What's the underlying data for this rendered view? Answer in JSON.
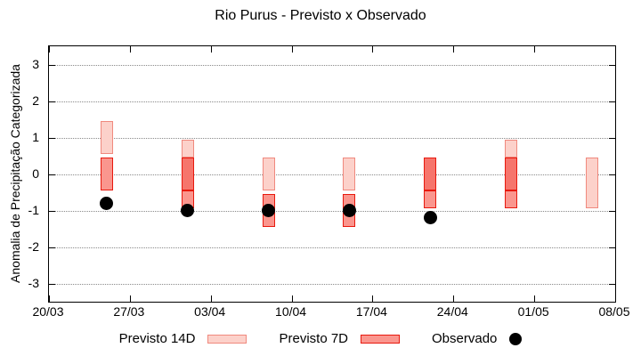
{
  "chart_data": {
    "type": "bar",
    "subtype": "interval-boxes-with-observed-dots",
    "title": "Rio Purus - Previsto x Observado",
    "ylabel": "Anomalia de Precipitação Categorizada",
    "xlabel": "",
    "x_axis": {
      "range_days": 49,
      "tick_days": [
        0,
        7,
        14,
        21,
        28,
        35,
        42,
        49
      ],
      "tick_labels": [
        "20/03",
        "27/03",
        "03/04",
        "10/04",
        "17/04",
        "24/04",
        "01/05",
        "08/05"
      ]
    },
    "y_axis": {
      "min": -3.5,
      "max": 3.5,
      "ticks": [
        3,
        2,
        1,
        0,
        -1,
        -2,
        -3
      ],
      "grid": "dotted horizontal"
    },
    "legend_entries": [
      {
        "label": "Previsto 14D",
        "marker": "box",
        "shade": "light"
      },
      {
        "label": "Previsto 7D",
        "marker": "box",
        "shade": "medium"
      },
      {
        "label": "Observado",
        "marker": "dot"
      }
    ],
    "colors": {
      "fill_light": "#fcd1ca",
      "fill_medium": "#fa968e",
      "fill_dark": "#f6756c",
      "border_light": "#f0897e",
      "border_strong": "#e8190e",
      "observed": "#000000",
      "grid": "#8a8a8a"
    },
    "bars": [
      {
        "date": "25/03",
        "day": 5,
        "segments": [
          {
            "from": 0.55,
            "to": 1.45,
            "shade": "light"
          },
          {
            "from": -0.45,
            "to": 0.45,
            "shade": "medium"
          }
        ],
        "observed": -0.8
      },
      {
        "date": "01/04",
        "day": 12,
        "segments": [
          {
            "from": 0.45,
            "to": 0.95,
            "shade": "light"
          },
          {
            "from": -0.45,
            "to": 0.45,
            "shade": "dark"
          },
          {
            "from": -0.95,
            "to": -0.45,
            "shade": "medium"
          }
        ],
        "observed": -1.0
      },
      {
        "date": "08/04",
        "day": 19,
        "segments": [
          {
            "from": -0.45,
            "to": 0.45,
            "shade": "light"
          },
          {
            "from": -1.45,
            "to": -0.55,
            "shade": "medium"
          }
        ],
        "observed": -1.0
      },
      {
        "date": "15/04",
        "day": 26,
        "segments": [
          {
            "from": -0.45,
            "to": 0.45,
            "shade": "light"
          },
          {
            "from": -1.45,
            "to": -0.55,
            "shade": "medium"
          }
        ],
        "observed": -1.0
      },
      {
        "date": "22/04",
        "day": 33,
        "segments": [
          {
            "from": -0.45,
            "to": 0.45,
            "shade": "dark"
          },
          {
            "from": -0.95,
            "to": -0.45,
            "shade": "medium"
          }
        ],
        "observed": -1.2
      },
      {
        "date": "29/04",
        "day": 40,
        "segments": [
          {
            "from": 0.45,
            "to": 0.95,
            "shade": "light"
          },
          {
            "from": -0.45,
            "to": 0.45,
            "shade": "dark"
          },
          {
            "from": -0.95,
            "to": -0.45,
            "shade": "medium"
          }
        ],
        "observed": null
      },
      {
        "date": "06/05",
        "day": 47,
        "segments": [
          {
            "from": -0.95,
            "to": 0.45,
            "shade": "light"
          }
        ],
        "observed": null
      }
    ]
  }
}
